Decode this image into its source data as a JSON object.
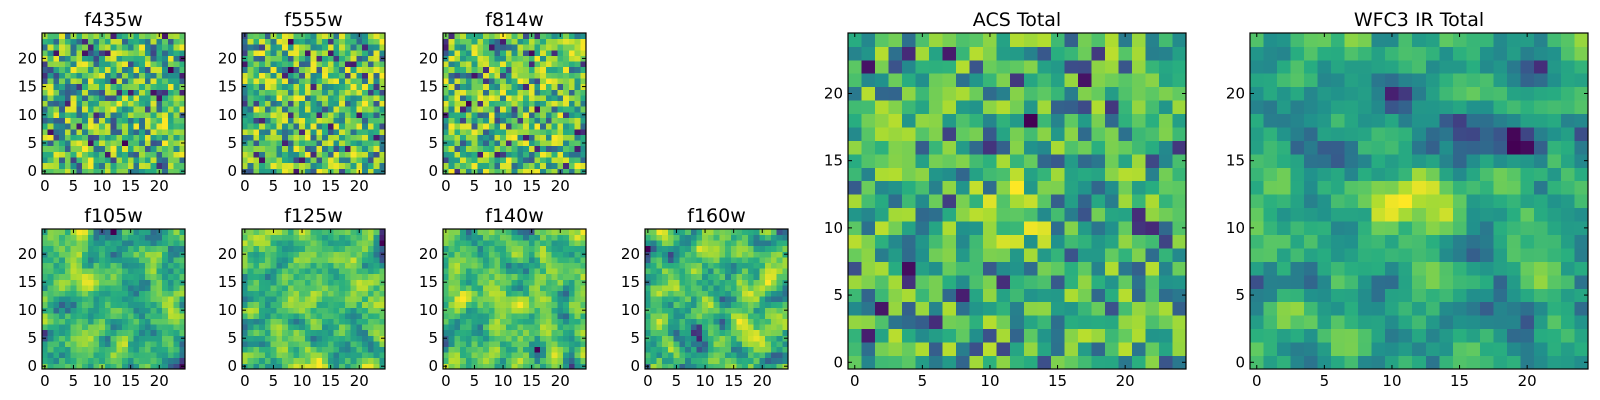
{
  "chart_data": [
    {
      "type": "heatmap",
      "title": "f435w",
      "xticks": [
        "0",
        "5",
        "10",
        "15",
        "20"
      ],
      "yticks": [
        "0",
        "5",
        "10",
        "15",
        "20"
      ],
      "xlim": [
        -0.5,
        24.5
      ],
      "ylim": [
        -0.5,
        24.5
      ],
      "grid_size": 25,
      "smoothness": 0,
      "seed": 11,
      "colormap": "viridis"
    },
    {
      "type": "heatmap",
      "title": "f555w",
      "xticks": [
        "0",
        "5",
        "10",
        "15",
        "20"
      ],
      "yticks": [
        "0",
        "5",
        "10",
        "15",
        "20"
      ],
      "xlim": [
        -0.5,
        24.5
      ],
      "ylim": [
        -0.5,
        24.5
      ],
      "grid_size": 25,
      "smoothness": 0,
      "seed": 23,
      "colormap": "viridis"
    },
    {
      "type": "heatmap",
      "title": "f814w",
      "xticks": [
        "0",
        "5",
        "10",
        "15",
        "20"
      ],
      "yticks": [
        "0",
        "5",
        "10",
        "15",
        "20"
      ],
      "xlim": [
        -0.5,
        24.5
      ],
      "ylim": [
        -0.5,
        24.5
      ],
      "grid_size": 25,
      "smoothness": 0,
      "seed": 37,
      "colormap": "viridis"
    },
    {
      "type": "heatmap",
      "title": "f105w",
      "xticks": [
        "0",
        "5",
        "10",
        "15",
        "20"
      ],
      "yticks": [
        "0",
        "5",
        "10",
        "15",
        "20"
      ],
      "xlim": [
        -0.5,
        24.5
      ],
      "ylim": [
        -0.5,
        24.5
      ],
      "grid_size": 25,
      "smoothness": 1,
      "seed": 41,
      "colormap": "viridis"
    },
    {
      "type": "heatmap",
      "title": "f125w",
      "xticks": [
        "0",
        "5",
        "10",
        "15",
        "20"
      ],
      "yticks": [
        "0",
        "5",
        "10",
        "15",
        "20"
      ],
      "xlim": [
        -0.5,
        24.5
      ],
      "ylim": [
        -0.5,
        24.5
      ],
      "grid_size": 25,
      "smoothness": 1,
      "seed": 53,
      "colormap": "viridis"
    },
    {
      "type": "heatmap",
      "title": "f140w",
      "xticks": [
        "0",
        "5",
        "10",
        "15",
        "20"
      ],
      "yticks": [
        "0",
        "5",
        "10",
        "15",
        "20"
      ],
      "xlim": [
        -0.5,
        24.5
      ],
      "ylim": [
        -0.5,
        24.5
      ],
      "grid_size": 25,
      "smoothness": 1,
      "seed": 67,
      "colormap": "viridis"
    },
    {
      "type": "heatmap",
      "title": "f160w",
      "xticks": [
        "0",
        "5",
        "10",
        "15",
        "20"
      ],
      "yticks": [
        "0",
        "5",
        "10",
        "15",
        "20"
      ],
      "xlim": [
        -0.5,
        24.5
      ],
      "ylim": [
        -0.5,
        24.5
      ],
      "grid_size": 25,
      "smoothness": 1,
      "seed": 79,
      "colormap": "viridis"
    },
    {
      "type": "heatmap",
      "title": "ACS Total",
      "xticks": [
        "0",
        "5",
        "10",
        "15",
        "20"
      ],
      "yticks": [
        "0",
        "5",
        "10",
        "15",
        "20"
      ],
      "xlim": [
        -0.5,
        24.5
      ],
      "ylim": [
        -0.5,
        24.5
      ],
      "grid_size": 25,
      "smoothness": 0,
      "seed": 83,
      "colormap": "viridis",
      "bright_center": [
        12,
        11
      ]
    },
    {
      "type": "heatmap",
      "title": "WFC3 IR Total",
      "xticks": [
        "0",
        "5",
        "10",
        "15",
        "20"
      ],
      "yticks": [
        "0",
        "5",
        "10",
        "15",
        "20"
      ],
      "xlim": [
        -0.5,
        24.5
      ],
      "ylim": [
        -0.5,
        24.5
      ],
      "grid_size": 25,
      "smoothness": 1,
      "seed": 97,
      "colormap": "viridis",
      "bright_center": [
        12,
        12
      ]
    }
  ]
}
